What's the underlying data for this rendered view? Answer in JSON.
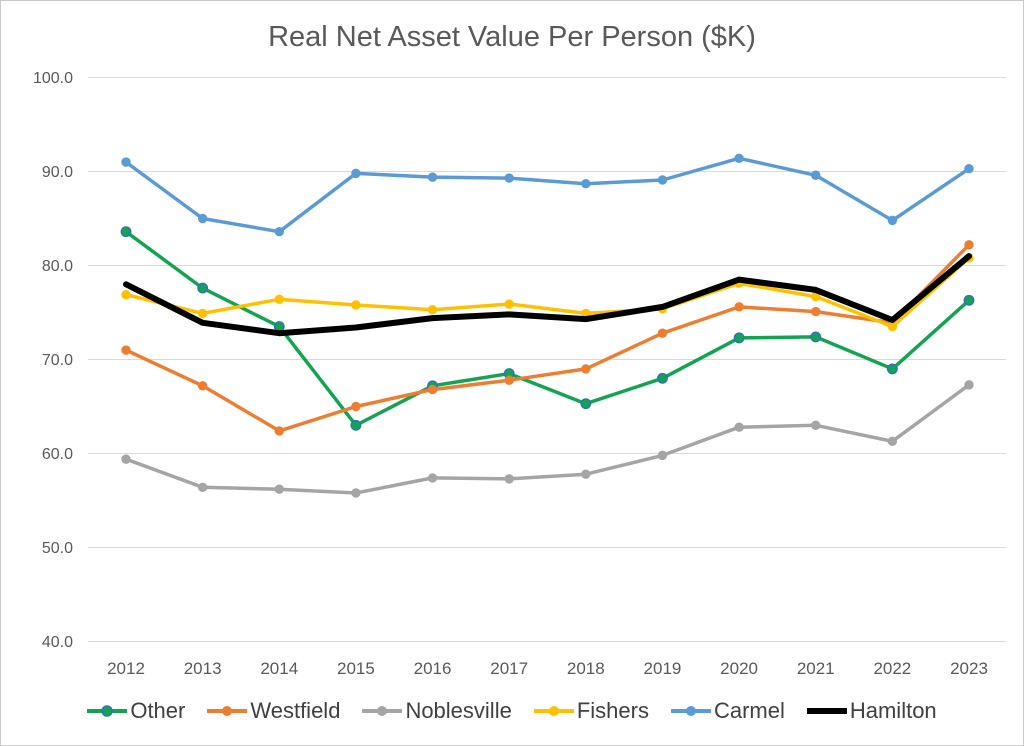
{
  "chart_data": {
    "type": "line",
    "title": "Real Net Asset Value Per Person ($K)",
    "x": [
      "2012",
      "2013",
      "2014",
      "2015",
      "2016",
      "2017",
      "2018",
      "2019",
      "2020",
      "2021",
      "2022",
      "2023"
    ],
    "series": [
      {
        "name": "Other",
        "color": "#12A452",
        "line_width": 3.5,
        "marker": true,
        "marker_stroke": "#2E75B6",
        "values": [
          83.6,
          77.6,
          73.5,
          63.0,
          67.2,
          68.5,
          65.3,
          68.0,
          72.3,
          72.4,
          69.0,
          76.3
        ]
      },
      {
        "name": "Westfield",
        "color": "#ED7D31",
        "line_width": 3.5,
        "marker": true,
        "marker_stroke": "",
        "values": [
          71.0,
          67.2,
          62.4,
          65.0,
          66.8,
          67.8,
          69.0,
          72.8,
          75.6,
          75.1,
          73.9,
          82.2
        ]
      },
      {
        "name": "Noblesville",
        "color": "#A5A5A5",
        "line_width": 3.5,
        "marker": true,
        "marker_stroke": "",
        "values": [
          59.4,
          56.4,
          56.2,
          55.8,
          57.4,
          57.3,
          57.8,
          59.8,
          62.8,
          63.0,
          61.3,
          67.3
        ]
      },
      {
        "name": "Fishers",
        "color": "#FFC000",
        "line_width": 3.5,
        "marker": true,
        "marker_stroke": "",
        "values": [
          76.9,
          74.9,
          76.4,
          75.8,
          75.3,
          75.9,
          74.9,
          75.4,
          78.1,
          76.7,
          73.5,
          80.8
        ]
      },
      {
        "name": "Carmel",
        "color": "#5B9BD5",
        "line_width": 3.5,
        "marker": true,
        "marker_stroke": "",
        "values": [
          91.0,
          85.0,
          83.6,
          89.8,
          89.4,
          89.3,
          88.7,
          89.1,
          91.4,
          89.6,
          84.8,
          90.3
        ]
      },
      {
        "name": "Hamilton",
        "color": "#000000",
        "line_width": 6,
        "marker": false,
        "marker_stroke": "",
        "values": [
          78.0,
          73.9,
          72.8,
          73.4,
          74.4,
          74.8,
          74.3,
          75.6,
          78.5,
          77.4,
          74.2,
          81.0
        ]
      }
    ],
    "ylim": [
      40,
      100
    ],
    "yticks": [
      100,
      90,
      80,
      70,
      60,
      50,
      40
    ],
    "ytick_labels": [
      "100.0",
      "90.0",
      "80.0",
      "70.0",
      "60.0",
      "50.0",
      "40.0"
    ],
    "grid": true,
    "legend_position": "bottom"
  },
  "colors": {
    "title_text": "#595959",
    "axis_label_text": "#595959",
    "legend_text": "#404040",
    "gridline": "#D9D9D9",
    "frame_border": "#C9C9C9",
    "background": "#FFFFFF"
  }
}
